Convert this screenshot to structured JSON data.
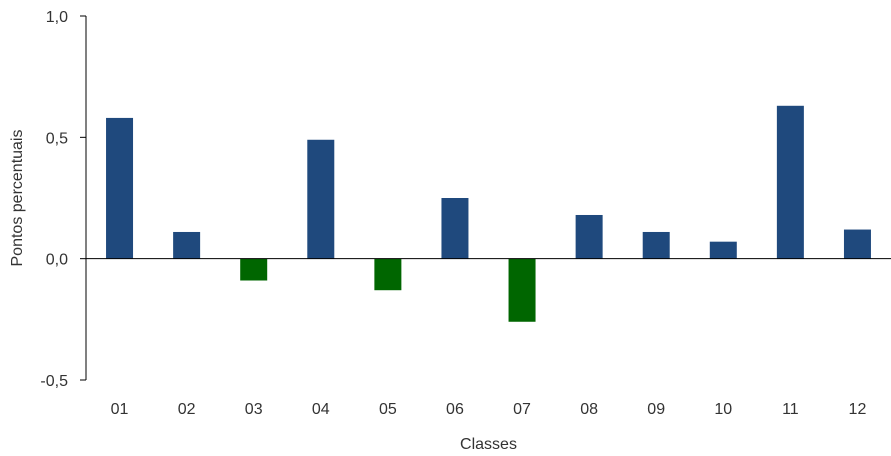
{
  "chart_data": {
    "type": "bar",
    "categories": [
      "01",
      "02",
      "03",
      "04",
      "05",
      "06",
      "07",
      "08",
      "09",
      "10",
      "11",
      "12"
    ],
    "values": [
      0.58,
      0.11,
      -0.09,
      0.49,
      -0.13,
      0.25,
      -0.26,
      0.18,
      0.11,
      0.07,
      0.63,
      0.12
    ],
    "xlabel": "Classes",
    "ylabel": "Pontos percentuais",
    "ylim": [
      -0.5,
      1.0
    ],
    "yticks": [
      1.0,
      0.5,
      0.0,
      -0.5
    ],
    "ytick_labels": [
      "1,0",
      "0,5",
      "0,0",
      "-0,5"
    ],
    "grid": false,
    "colors": {
      "positive": "#1f497d",
      "negative": "#006600",
      "axis": "#000000"
    }
  }
}
